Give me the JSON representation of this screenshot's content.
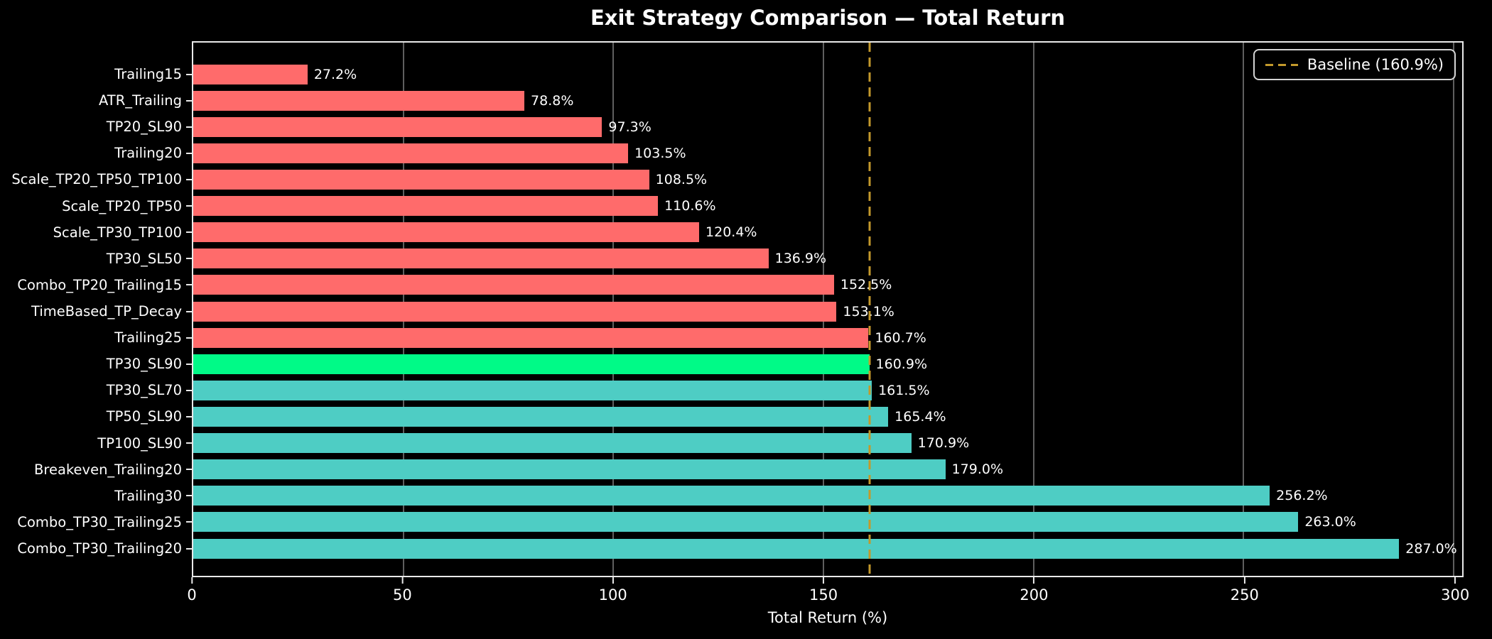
{
  "chart_data": {
    "type": "bar",
    "orientation": "horizontal",
    "title": "Exit Strategy Comparison — Total Return",
    "xlabel": "Total Return (%)",
    "xticks": [
      0,
      50,
      100,
      150,
      200,
      250,
      300
    ],
    "xtick_labels": [
      "0",
      "50",
      "100",
      "150",
      "200",
      "250",
      "300"
    ],
    "xlim": [
      0,
      302
    ],
    "grid": "vertical-gridlines-on",
    "legend_position": "upper-right",
    "categories": [
      "Trailing15",
      "ATR_Trailing",
      "TP20_SL90",
      "Trailing20",
      "Scale_TP20_TP50_TP100",
      "Scale_TP20_TP50",
      "Scale_TP30_TP100",
      "TP30_SL50",
      "Combo_TP20_Trailing15",
      "TimeBased_TP_Decay",
      "Trailing25",
      "TP30_SL90",
      "TP30_SL70",
      "TP50_SL90",
      "TP100_SL90",
      "Breakeven_Trailing20",
      "Trailing30",
      "Combo_TP30_Trailing25",
      "Combo_TP30_Trailing20"
    ],
    "values": [
      27.2,
      78.8,
      97.3,
      103.5,
      108.5,
      110.6,
      120.4,
      136.9,
      152.5,
      153.1,
      160.7,
      160.9,
      161.5,
      165.4,
      170.9,
      179.0,
      256.2,
      263.0,
      287.0
    ],
    "value_labels": [
      "27.2%",
      "78.8%",
      "97.3%",
      "103.5%",
      "108.5%",
      "110.6%",
      "120.4%",
      "136.9%",
      "152.5%",
      "153.1%",
      "160.7%",
      "160.9%",
      "161.5%",
      "165.4%",
      "170.9%",
      "179.0%",
      "256.2%",
      "263.0%",
      "287.0%"
    ],
    "colors": [
      "#FF6B6B",
      "#FF6B6B",
      "#FF6B6B",
      "#FF6B6B",
      "#FF6B6B",
      "#FF6B6B",
      "#FF6B6B",
      "#FF6B6B",
      "#FF6B6B",
      "#FF6B6B",
      "#FF6B6B",
      "#00FA87",
      "#4ECDC4",
      "#4ECDC4",
      "#4ECDC4",
      "#4ECDC4",
      "#4ECDC4",
      "#4ECDC4",
      "#4ECDC4"
    ],
    "palette_meaning": {
      "below_baseline": "#FF6B6B",
      "baseline_strategy": "#00FA87",
      "above_baseline": "#4ECDC4"
    },
    "baseline": {
      "value": 160.9,
      "label": "Baseline (160.9%)",
      "color": "#C3992B",
      "style": "dashed-vertical-line"
    },
    "text_color": "#ffffff",
    "background_color": "#000000",
    "spine_color": "#e9e9e9",
    "gridline_color": "#5f5f5f"
  }
}
